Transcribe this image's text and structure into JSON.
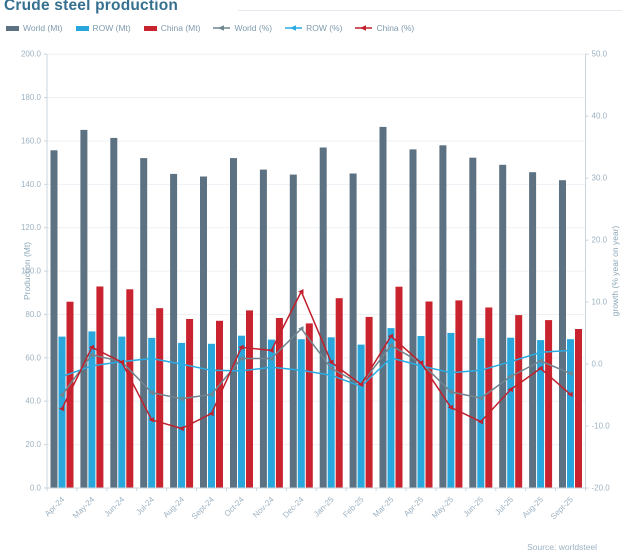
{
  "title": "Crude steel production",
  "source": "Source: worldsteel",
  "colors": {
    "title_text": "#36708f",
    "legend_text": "#7f9bae",
    "tick_text": "#9db2c2",
    "axis_title_text": "#8da8ba",
    "gridline": "#edf1f4",
    "axis_line": "#c9d4dc",
    "bar_world": "#5c7282",
    "bar_row": "#29a7dd",
    "bar_china": "#c8232e",
    "line_world": "#70858f",
    "line_row": "#29abe2",
    "line_china": "#c1202d"
  },
  "legend": [
    {
      "label": "World (Mt)",
      "type": "bar",
      "color": "#5c7282"
    },
    {
      "label": "ROW (Mt)",
      "type": "bar",
      "color": "#29a7dd"
    },
    {
      "label": "China (Mt)",
      "type": "bar",
      "color": "#c8232e"
    },
    {
      "label": "World (%)",
      "type": "line",
      "color": "#70858f"
    },
    {
      "label": "ROW (%)",
      "type": "line",
      "color": "#29abe2"
    },
    {
      "label": "China (%)",
      "type": "line",
      "color": "#c1202d"
    }
  ],
  "chart_data": {
    "type": "combo_bar_line",
    "categories": [
      "Apr-24",
      "May-24",
      "Jun-24",
      "Jul-24",
      "Aug-24",
      "Sept-24",
      "Oct-24",
      "Nov-24",
      "Dec-24",
      "Jan-25",
      "Feb-25",
      "Mar-25",
      "Apr-25",
      "May-25",
      "Jun-25",
      "Jul-25",
      "Aug-25",
      "Sept-25"
    ],
    "bar_series": [
      {
        "name": "World (Mt)",
        "axis": "left",
        "color": "#5c7282",
        "values": [
          155.7,
          165.1,
          161.4,
          152.1,
          144.8,
          143.6,
          152.1,
          146.8,
          144.5,
          157.0,
          145.0,
          166.5,
          156.1,
          158.0,
          152.3,
          149.0,
          145.6,
          141.9
        ]
      },
      {
        "name": "ROW (Mt)",
        "axis": "left",
        "color": "#29a7dd",
        "values": [
          69.8,
          72.2,
          69.8,
          69.2,
          66.9,
          66.5,
          70.2,
          68.4,
          68.6,
          69.5,
          66.1,
          73.7,
          70.1,
          71.5,
          69.1,
          69.3,
          68.2,
          68.6
        ]
      },
      {
        "name": "China (Mt)",
        "axis": "left",
        "color": "#c8232e",
        "values": [
          85.9,
          92.9,
          91.6,
          82.9,
          77.9,
          77.1,
          81.9,
          78.4,
          75.9,
          87.5,
          78.9,
          92.8,
          86.0,
          86.5,
          83.2,
          79.7,
          77.4,
          73.3
        ]
      }
    ],
    "line_series": [
      {
        "name": "World (%)",
        "axis": "right",
        "color": "#70858f",
        "values": [
          -5.0,
          1.5,
          0.4,
          -4.6,
          -5.6,
          -4.9,
          0.9,
          0.9,
          5.7,
          -0.7,
          -3.3,
          3.0,
          0.2,
          -4.5,
          -5.5,
          -2.0,
          0.5,
          -1.5
        ]
      },
      {
        "name": "ROW (%)",
        "axis": "right",
        "color": "#29abe2",
        "values": [
          -2.0,
          -0.3,
          0.4,
          0.9,
          0.0,
          -1.0,
          -1.1,
          -0.5,
          -1.0,
          -1.8,
          -3.6,
          1.0,
          -0.3,
          -1.4,
          -1.0,
          0.4,
          1.9,
          2.2
        ]
      },
      {
        "name": "China (%)",
        "axis": "right",
        "color": "#c1202d",
        "values": [
          -7.2,
          2.7,
          0.3,
          -9.0,
          -10.4,
          -8.0,
          2.7,
          2.2,
          11.7,
          0.3,
          -3.3,
          4.5,
          0.2,
          -7.0,
          -9.3,
          -4.1,
          -0.7,
          -4.9
        ]
      }
    ],
    "y_left": {
      "label": "Production (Mt)",
      "min": 0,
      "max": 200,
      "step": 20,
      "tick_labels": [
        "0.0",
        "20.0",
        "40.0",
        "60.0",
        "80.0",
        "100.0",
        "120.0",
        "140.0",
        "160.0",
        "180.0",
        "200.0"
      ]
    },
    "y_right": {
      "label": "growth (% year on year)",
      "min": -20,
      "max": 50,
      "step": 10,
      "tick_labels": [
        "-20.0",
        "-10.0",
        "0.0",
        "10.0",
        "20.0",
        "30.0",
        "40.0",
        "50.0"
      ]
    },
    "grid": "horizontal",
    "legend_position": "top"
  }
}
